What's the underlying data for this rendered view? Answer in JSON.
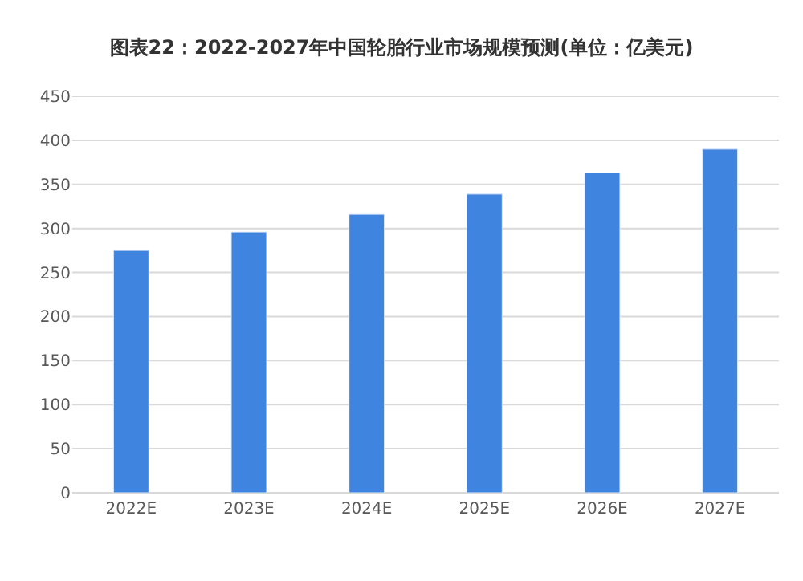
{
  "chart_data": {
    "type": "bar",
    "title": "图表22：2022-2027年中国轮胎行业市场规模预测(单位：亿美元)",
    "categories": [
      "2022E",
      "2023E",
      "2024E",
      "2025E",
      "2026E",
      "2027E"
    ],
    "values": [
      275,
      296,
      316,
      339,
      363,
      390
    ],
    "color": "#3f85e0",
    "ylim": [
      0,
      450
    ],
    "yticks": [
      0,
      50,
      100,
      150,
      200,
      250,
      300,
      350,
      400,
      450
    ],
    "grid": "y"
  }
}
